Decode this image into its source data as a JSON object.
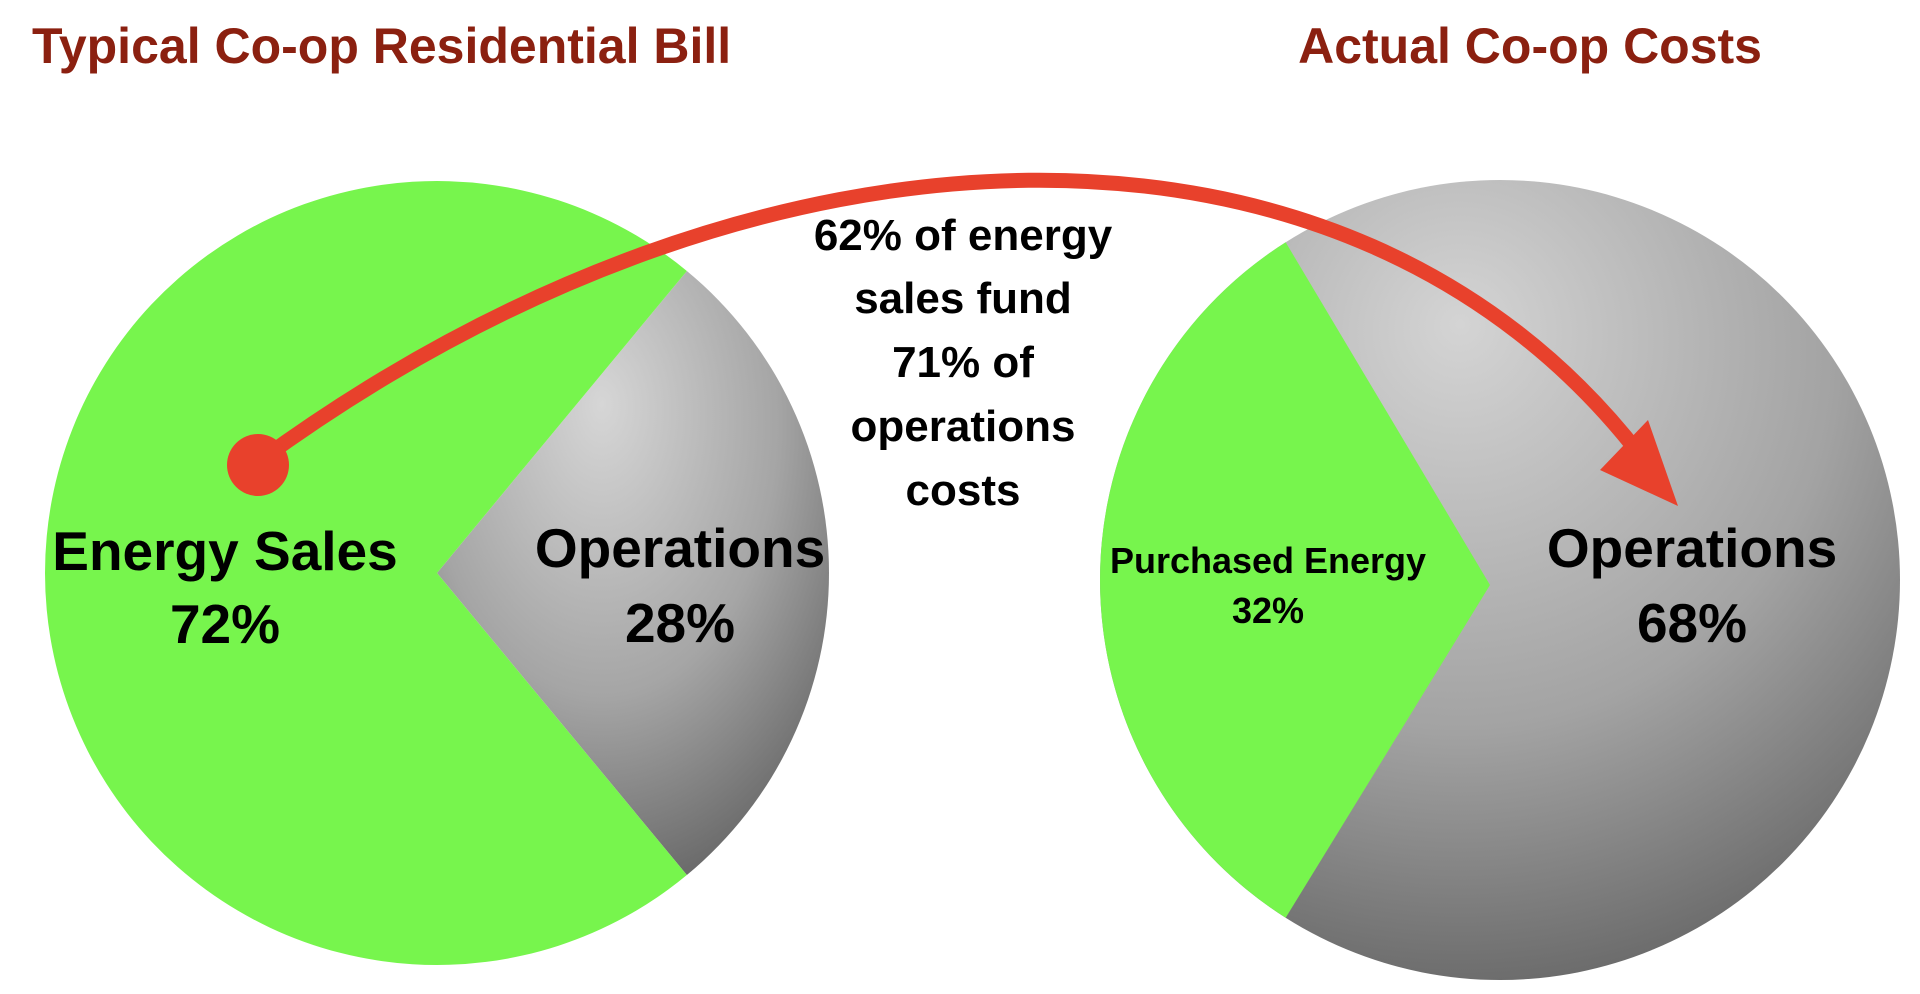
{
  "colors": {
    "energy": "#77f54d",
    "operations_light": "#d3d3d3",
    "operations_dark": "#6e6e6e",
    "title": "#8b2010",
    "arrow": "#e8412c"
  },
  "chart_data": [
    {
      "type": "pie",
      "title": "Typical Co-op Residential Bill",
      "slices": [
        {
          "name": "Energy Sales",
          "value": 72,
          "value_label": "72%",
          "color": "#77f54d"
        },
        {
          "name": "Operations",
          "value": 28,
          "value_label": "28%",
          "color": "gray"
        }
      ]
    },
    {
      "type": "pie",
      "title": "Actual Co-op Costs",
      "slices": [
        {
          "name": "Purchased Energy",
          "value": 32,
          "value_label": "32%",
          "color": "#77f54d"
        },
        {
          "name": "Operations",
          "value": 68,
          "value_label": "68%",
          "color": "gray"
        }
      ]
    }
  ],
  "annotation": {
    "lines": [
      "62% of energy",
      "sales fund",
      "71% of",
      "operations",
      "costs"
    ]
  }
}
